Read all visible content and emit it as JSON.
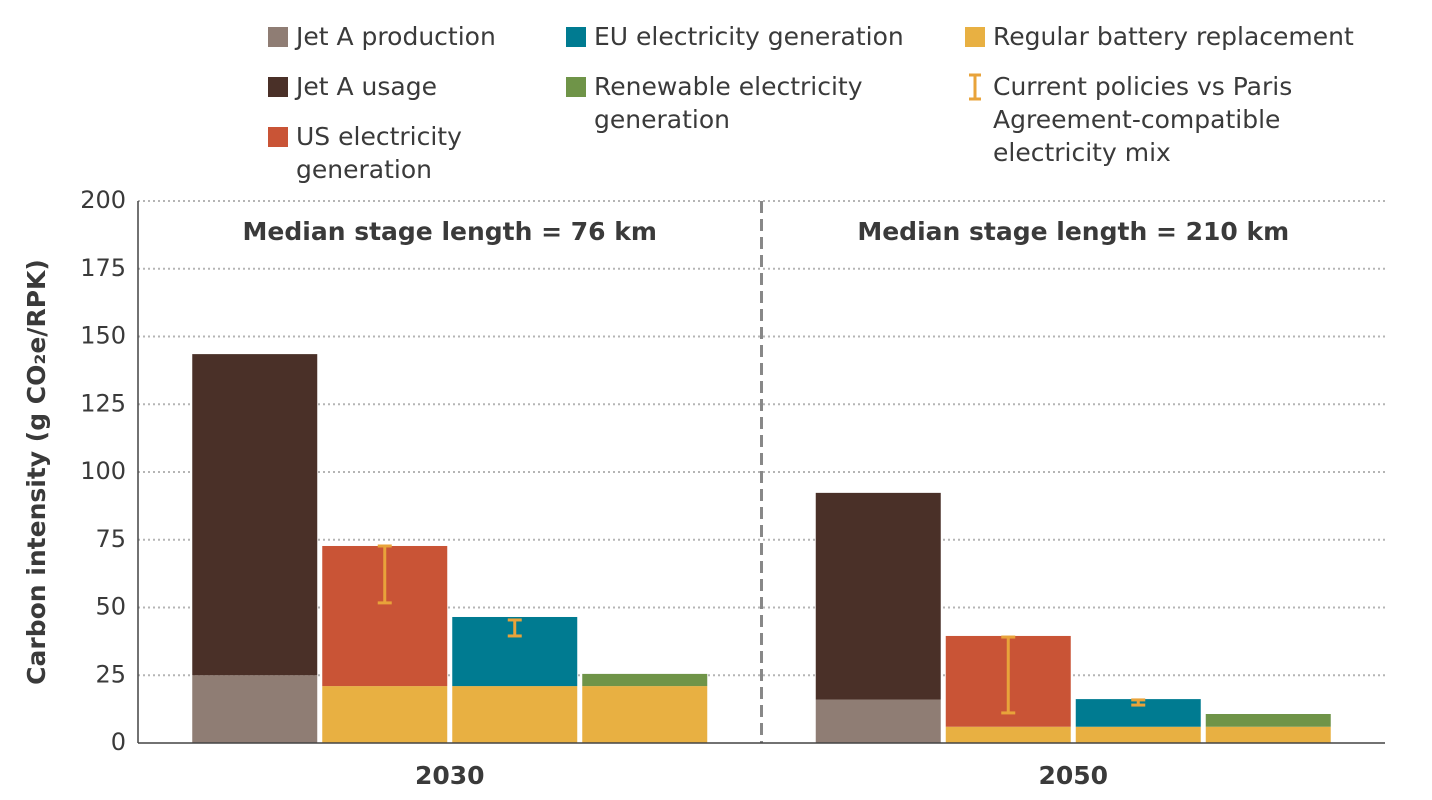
{
  "chart_data": {
    "type": "stacked-bar",
    "y_label": "Carbon intensity (g CO₂e/RPK)",
    "groups": [
      "2030",
      "2050"
    ],
    "annotations": [
      "Median stage length = 76 km",
      "Median stage length = 210 km"
    ],
    "ylim": [
      0,
      200
    ],
    "yticks": [
      0,
      25,
      50,
      75,
      100,
      125,
      150,
      175,
      200
    ],
    "grid": true,
    "series": [
      {
        "name": "Jet A production",
        "color": "#8f7d74",
        "values": [
          [
            25,
            null,
            null,
            null
          ],
          [
            16,
            null,
            null,
            null
          ]
        ]
      },
      {
        "name": "Jet A usage",
        "color": "#4a3028",
        "values": [
          [
            118.5,
            null,
            null,
            null
          ],
          [
            76.3,
            null,
            null,
            null
          ]
        ]
      },
      {
        "name": "US electricity generation",
        "color": "#c95436",
        "values": [
          [
            null,
            51.7,
            null,
            null
          ],
          [
            null,
            33.5,
            null,
            null
          ]
        ]
      },
      {
        "name": "EU electricity generation",
        "color": "#007b91",
        "values": [
          [
            null,
            null,
            25.5,
            null
          ],
          [
            null,
            null,
            10.2,
            null
          ]
        ]
      },
      {
        "name": "Renewable electricity generation",
        "color": "#6f9448",
        "values": [
          [
            null,
            null,
            null,
            4.5
          ],
          [
            null,
            null,
            null,
            4.7
          ]
        ]
      },
      {
        "name": "Regular battery replacement",
        "color": "#e8b042",
        "values": [
          [
            null,
            21,
            21,
            21
          ],
          [
            null,
            6,
            6,
            6
          ]
        ]
      }
    ],
    "error_bars": {
      "name": "Current policies vs Paris Agreement-compatible electricity mix",
      "color": "#e8a33a",
      "values": [
        [
          null,
          [
            51.7,
            72.7
          ],
          [
            39.5,
            45.4
          ],
          null
        ],
        [
          null,
          [
            11.1,
            39.1
          ],
          [
            14,
            15.9
          ],
          null
        ]
      ]
    }
  }
}
